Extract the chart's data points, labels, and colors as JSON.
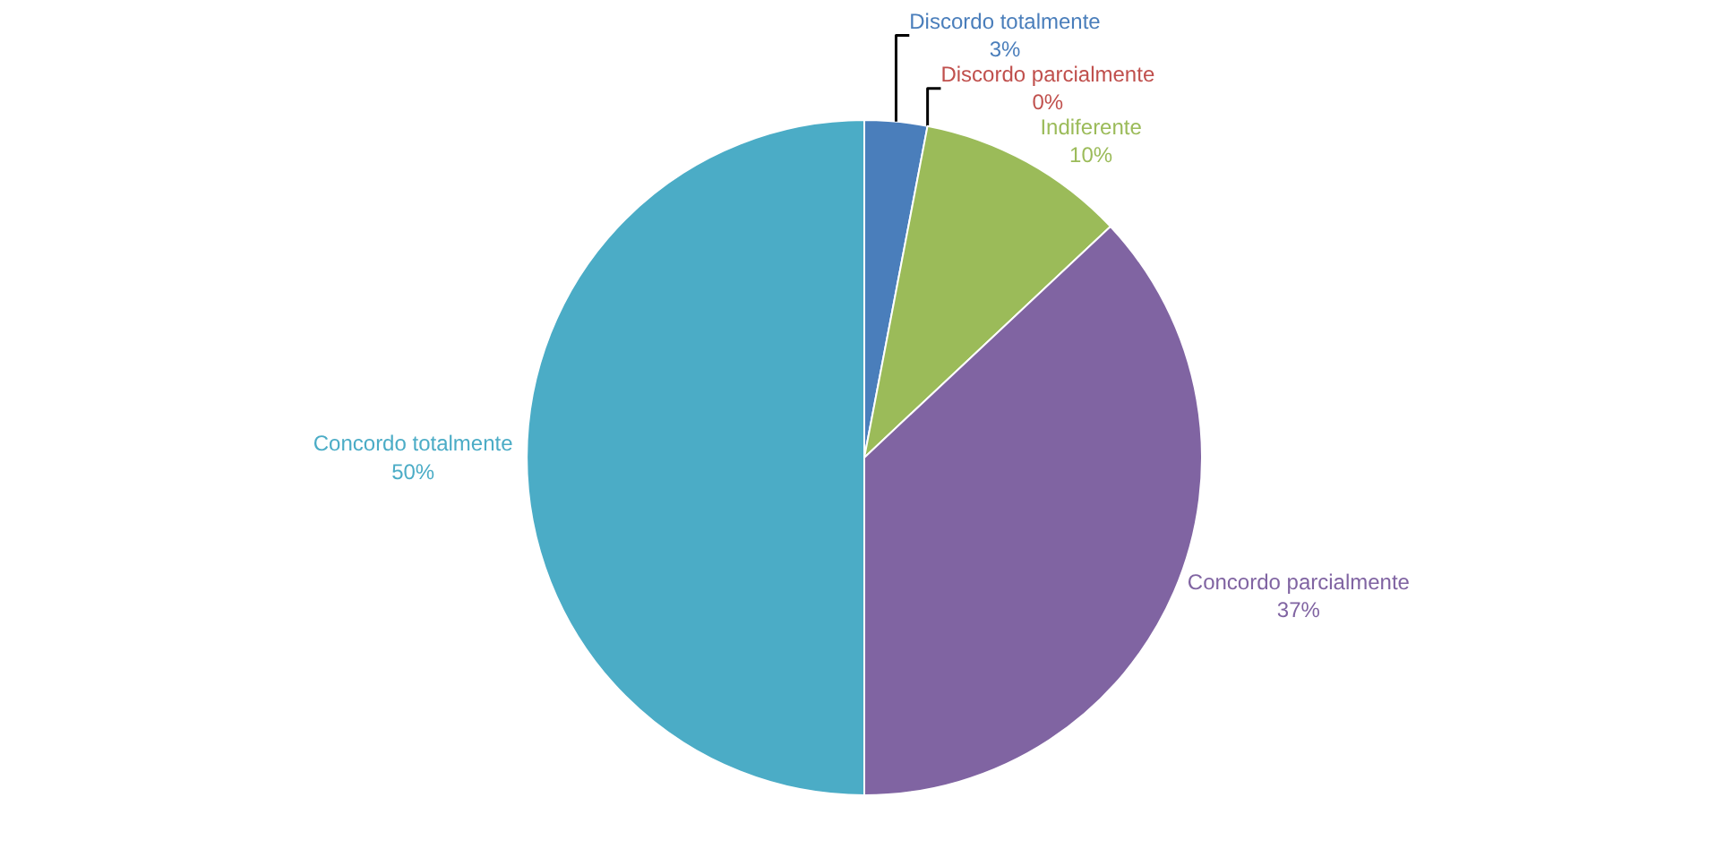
{
  "chart_data": {
    "type": "pie",
    "categories": [
      "Discordo totalmente",
      "Discordo parcialmente",
      "Indiferente",
      "Concordo parcialmente",
      "Concordo totalmente"
    ],
    "values": [
      3,
      0,
      10,
      37,
      50
    ],
    "value_labels": [
      "3%",
      "0%",
      "10%",
      "37%",
      "50%"
    ],
    "colors": [
      "#4a7ebb",
      "#c0504d",
      "#9bbb59",
      "#8064a2",
      "#4bacc6"
    ],
    "legend": false
  }
}
